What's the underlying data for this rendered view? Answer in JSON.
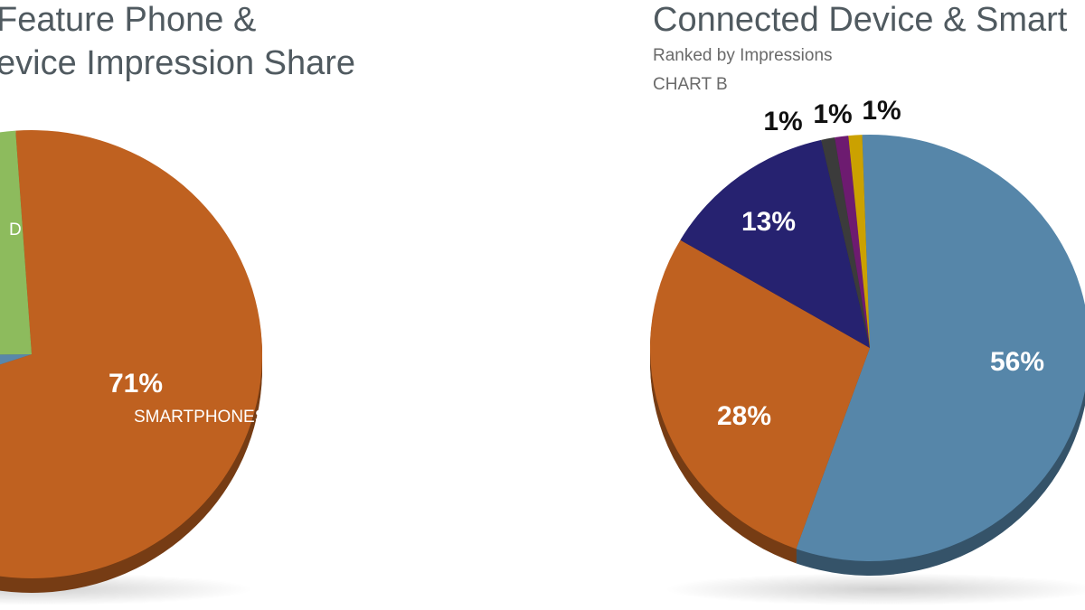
{
  "chart_data": [
    {
      "type": "pie",
      "title": [
        "Feature Phone &",
        "evice Impression Share"
      ],
      "categories": [
        "SMARTPHONES",
        null,
        "D"
      ],
      "values": [
        71,
        5,
        24
      ],
      "value_labels": [
        "71%",
        null,
        null
      ],
      "colors": [
        "#bf6120",
        "#5987aa",
        "#8dbb5d"
      ]
    },
    {
      "type": "pie",
      "title": [
        "Connected Device & Smart"
      ],
      "subtitle": [
        "Ranked by Impressions",
        "CHART B"
      ],
      "values": [
        56,
        28,
        13,
        1,
        1,
        1
      ],
      "value_labels": [
        "56%",
        "28%",
        "13%",
        "1%",
        "1%",
        "1%"
      ],
      "colors": [
        "#5686a9",
        "#bf6120",
        "#262270",
        "#3b3b3b",
        "#6d1b70",
        "#cba100"
      ]
    }
  ]
}
